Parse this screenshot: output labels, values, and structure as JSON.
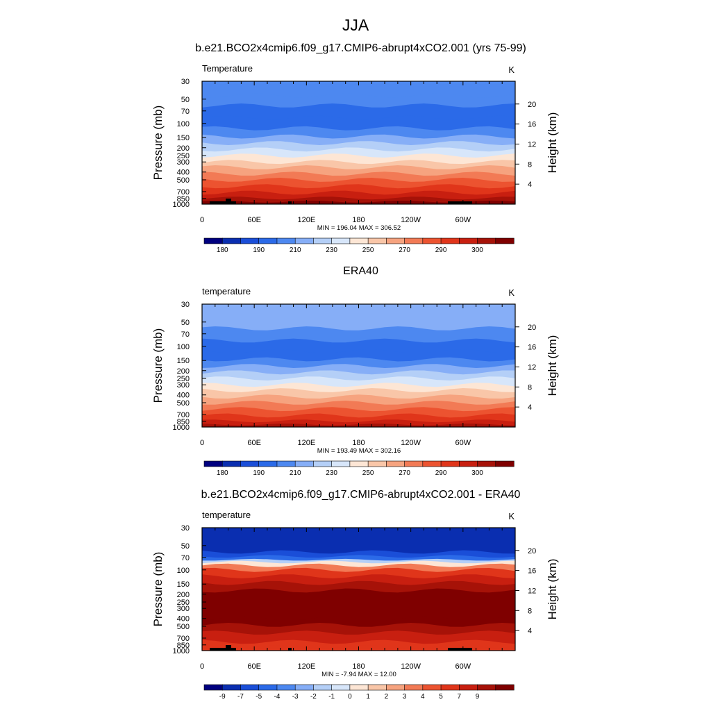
{
  "figure": {
    "title": "JJA",
    "colors": {
      "text": "#000000",
      "background": "#ffffff"
    }
  },
  "chart_data": [
    {
      "type": "heatmap",
      "title": "b.e21.BCO2x4cmip6.f09_g17.CMIP6-abrupt4xCO2.001 (yrs 75-99)",
      "variable": "Temperature",
      "units": "K",
      "ylabel": "Pressure (mb)",
      "ylabel_right": "Height (km)",
      "yscale": "log",
      "x_ticks": [
        "0",
        "60E",
        "120E",
        "180",
        "120W",
        "60W"
      ],
      "y_ticks": [
        "30",
        "50",
        "70",
        "100",
        "150",
        "200",
        "250",
        "300",
        "400",
        "500",
        "700",
        "850",
        "1000"
      ],
      "y_ticks_right": [
        "20",
        "16",
        "12",
        "8",
        "4"
      ],
      "stats": "MIN = 196.04  MAX = 306.52",
      "min": 196.04,
      "max": 306.52,
      "colorbar_labels": [
        "180",
        "190",
        "210",
        "230",
        "250",
        "270",
        "290",
        "300"
      ],
      "colorbar_colors": [
        "#00007f",
        "#0a2eb0",
        "#1a4ed8",
        "#2b6ae8",
        "#4d88f0",
        "#86aef7",
        "#b4cff7",
        "#d7e6fa",
        "#fde6d5",
        "#f9c6a8",
        "#f6a37f",
        "#f27a55",
        "#ec5330",
        "#e0351a",
        "#c81f10",
        "#a61208",
        "#7f0000"
      ],
      "profile": [
        {
          "p": 30,
          "bin": 4
        },
        {
          "p": 45,
          "bin": 4
        },
        {
          "p": 60,
          "bin": 3
        },
        {
          "p": 85,
          "bin": 3
        },
        {
          "p": 115,
          "bin": 4
        },
        {
          "p": 145,
          "bin": 5
        },
        {
          "p": 175,
          "bin": 6
        },
        {
          "p": 210,
          "bin": 7
        },
        {
          "p": 250,
          "bin": 8
        },
        {
          "p": 300,
          "bin": 9
        },
        {
          "p": 350,
          "bin": 10
        },
        {
          "p": 420,
          "bin": 11
        },
        {
          "p": 500,
          "bin": 12
        },
        {
          "p": 600,
          "bin": 13
        },
        {
          "p": 720,
          "bin": 14
        },
        {
          "p": 840,
          "bin": 15
        },
        {
          "p": 930,
          "bin": 16
        },
        {
          "p": 1000,
          "bin": 16
        }
      ],
      "topography": true
    },
    {
      "type": "heatmap",
      "title": "ERA40",
      "variable": "temperature",
      "units": "K",
      "ylabel": "Pressure (mb)",
      "ylabel_right": "Height (km)",
      "yscale": "log",
      "x_ticks": [
        "0",
        "60E",
        "120E",
        "180",
        "120W",
        "60W"
      ],
      "y_ticks": [
        "30",
        "50",
        "70",
        "100",
        "150",
        "200",
        "250",
        "300",
        "400",
        "500",
        "700",
        "850",
        "1000"
      ],
      "y_ticks_right": [
        "20",
        "16",
        "12",
        "8",
        "4"
      ],
      "stats": "MIN = 193.49  MAX = 302.16",
      "min": 193.49,
      "max": 302.16,
      "colorbar_labels": [
        "180",
        "190",
        "210",
        "230",
        "250",
        "270",
        "290",
        "300"
      ],
      "colorbar_colors": [
        "#00007f",
        "#0a2eb0",
        "#1a4ed8",
        "#2b6ae8",
        "#4d88f0",
        "#86aef7",
        "#b4cff7",
        "#d7e6fa",
        "#fde6d5",
        "#f9c6a8",
        "#f6a37f",
        "#f27a55",
        "#ec5330",
        "#e0351a",
        "#c81f10",
        "#a61208",
        "#7f0000"
      ],
      "profile": [
        {
          "p": 30,
          "bin": 5
        },
        {
          "p": 45,
          "bin": 5
        },
        {
          "p": 60,
          "bin": 4
        },
        {
          "p": 85,
          "bin": 3
        },
        {
          "p": 115,
          "bin": 3
        },
        {
          "p": 145,
          "bin": 4
        },
        {
          "p": 175,
          "bin": 5
        },
        {
          "p": 210,
          "bin": 6
        },
        {
          "p": 250,
          "bin": 7
        },
        {
          "p": 300,
          "bin": 8
        },
        {
          "p": 350,
          "bin": 9
        },
        {
          "p": 420,
          "bin": 10
        },
        {
          "p": 500,
          "bin": 11
        },
        {
          "p": 600,
          "bin": 12
        },
        {
          "p": 720,
          "bin": 13
        },
        {
          "p": 840,
          "bin": 14
        },
        {
          "p": 930,
          "bin": 15
        },
        {
          "p": 1000,
          "bin": 15
        }
      ],
      "topography": false
    },
    {
      "type": "heatmap",
      "title": "b.e21.BCO2x4cmip6.f09_g17.CMIP6-abrupt4xCO2.001 - ERA40",
      "variable": "temperature",
      "units": "K",
      "ylabel": "Pressure (mb)",
      "ylabel_right": "Height (km)",
      "yscale": "log",
      "x_ticks": [
        "0",
        "60E",
        "120E",
        "180",
        "120W",
        "60W"
      ],
      "y_ticks": [
        "30",
        "50",
        "70",
        "100",
        "150",
        "200",
        "250",
        "300",
        "400",
        "500",
        "700",
        "850",
        "1000"
      ],
      "y_ticks_right": [
        "20",
        "16",
        "12",
        "8",
        "4"
      ],
      "stats": "MIN = -7.94  MAX = 12.00",
      "min": -7.94,
      "max": 12.0,
      "colorbar_labels": [
        "-9",
        "-7",
        "-5",
        "-4",
        "-3",
        "-2",
        "-1",
        "0",
        "1",
        "2",
        "3",
        "4",
        "5",
        "7",
        "9"
      ],
      "colorbar_colors": [
        "#00007f",
        "#0a2eb0",
        "#1a4ed8",
        "#2b6ae8",
        "#4d88f0",
        "#86aef7",
        "#b4cff7",
        "#d7e6fa",
        "#fde6d5",
        "#f9c6a8",
        "#f6a37f",
        "#f27a55",
        "#ec5330",
        "#e0351a",
        "#c81f10",
        "#a61208",
        "#7f0000"
      ],
      "profile": [
        {
          "p": 30,
          "bin": 1
        },
        {
          "p": 45,
          "bin": 1
        },
        {
          "p": 60,
          "bin": 2
        },
        {
          "p": 68,
          "bin": 3
        },
        {
          "p": 75,
          "bin": 6
        },
        {
          "p": 80,
          "bin": 8
        },
        {
          "p": 88,
          "bin": 11
        },
        {
          "p": 100,
          "bin": 13
        },
        {
          "p": 120,
          "bin": 14
        },
        {
          "p": 145,
          "bin": 15
        },
        {
          "p": 180,
          "bin": 16
        },
        {
          "p": 400,
          "bin": 16
        },
        {
          "p": 480,
          "bin": 15
        },
        {
          "p": 600,
          "bin": 14
        },
        {
          "p": 780,
          "bin": 13
        },
        {
          "p": 900,
          "bin": 13
        },
        {
          "p": 1000,
          "bin": 13
        }
      ],
      "topography": true
    }
  ]
}
